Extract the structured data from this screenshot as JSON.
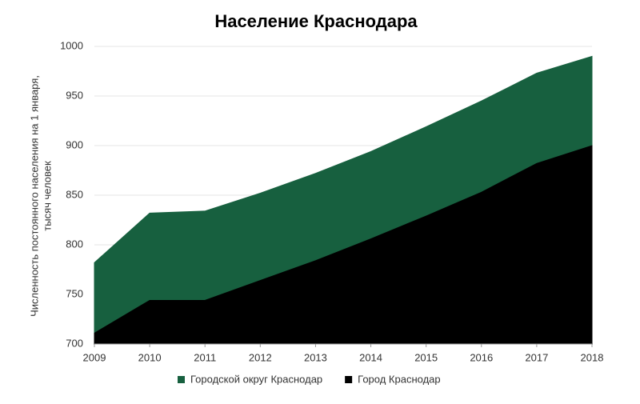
{
  "chart_data": {
    "type": "area",
    "title": "Население Краснодара",
    "ylabel": [
      "Численность постоянного населения на 1 января,",
      "тысяч человек"
    ],
    "x": [
      2009,
      2010,
      2011,
      2012,
      2013,
      2014,
      2015,
      2016,
      2017,
      2018
    ],
    "series": [
      {
        "name": "Городской округ Краснодар",
        "color": "#17603f",
        "values": [
          782,
          832,
          834,
          852,
          872,
          894,
          919,
          945,
          973,
          990
        ]
      },
      {
        "name": "Город Краснодар",
        "color": "#000000",
        "values": [
          711,
          744,
          744,
          764,
          784,
          806,
          829,
          853,
          882,
          900
        ]
      }
    ],
    "xlim": [
      2009,
      2018
    ],
    "xticks": [
      2009,
      2010,
      2011,
      2012,
      2013,
      2014,
      2015,
      2016,
      2017,
      2018
    ],
    "ylim": [
      700,
      1000
    ],
    "yticks": [
      700,
      750,
      800,
      850,
      900,
      950,
      1000
    ],
    "grid": true,
    "legend": "bottom"
  }
}
